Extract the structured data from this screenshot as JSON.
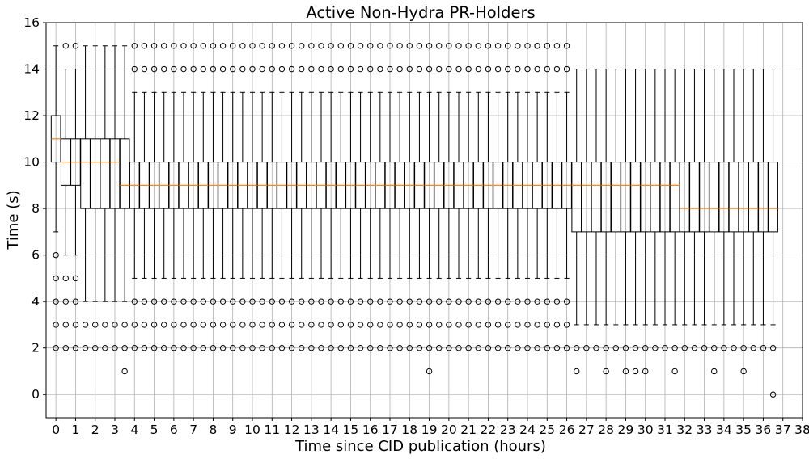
{
  "chart_data": {
    "type": "box",
    "title": "Active Non-Hydra PR-Holders",
    "xlabel": "Time since CID publication (hours)",
    "ylabel": "Time (s)",
    "xlim": [
      -0.5,
      38
    ],
    "ylim": [
      -1,
      16
    ],
    "xticks": [
      0,
      1,
      2,
      3,
      4,
      5,
      6,
      7,
      8,
      9,
      10,
      11,
      12,
      13,
      14,
      15,
      16,
      17,
      18,
      19,
      20,
      21,
      22,
      23,
      24,
      25,
      26,
      27,
      28,
      29,
      30,
      31,
      32,
      33,
      34,
      35,
      36,
      37,
      38
    ],
    "yticks": [
      0,
      2,
      4,
      6,
      8,
      10,
      12,
      14,
      16
    ],
    "grid": true,
    "legend": "none",
    "box_width_hours": 0.5,
    "colors": {
      "box": "#000000",
      "median": "#ff7f0e",
      "grid": "#b0b0b0",
      "flier": "#000000"
    },
    "segments": [
      {
        "x_start": 0,
        "x_end": 0,
        "q1": 10,
        "median": 11,
        "q3": 12,
        "whisker_low": 7,
        "whisker_high": 15,
        "fliers_low": [
          6,
          5,
          4,
          3,
          2
        ],
        "fliers_high": []
      },
      {
        "x_start": 0.5,
        "x_end": 1,
        "q1": 9,
        "median": 10,
        "q3": 11,
        "whisker_low": 6,
        "whisker_high": 14,
        "fliers_low": [
          5,
          4,
          3,
          2
        ],
        "fliers_high": [
          15
        ]
      },
      {
        "x_start": 1.5,
        "x_end": 3.5,
        "q1": 8,
        "median": 10,
        "q3": 11,
        "whisker_low": 4,
        "whisker_high": 15,
        "fliers_low": [
          3,
          2
        ],
        "fliers_high": [],
        "median_at_3_5": 9
      },
      {
        "x_start": 4,
        "x_end": 26,
        "q1": 8,
        "median": 9,
        "q3": 10,
        "whisker_low": 5,
        "whisker_high": 13,
        "fliers_low": [
          4,
          3,
          2
        ],
        "fliers_high": [
          14,
          15
        ]
      },
      {
        "x_start": 26.5,
        "x_end": 31.5,
        "q1": 7,
        "median": 9,
        "q3": 10,
        "whisker_low": 3,
        "whisker_high": 14,
        "fliers_low": [
          2
        ],
        "fliers_high": []
      },
      {
        "x_start": 32,
        "x_end": 36.5,
        "q1": 7,
        "median": 8,
        "q3": 10,
        "whisker_low": 3,
        "whisker_high": 14,
        "fliers_low": [
          2
        ],
        "fliers_high": []
      }
    ],
    "extra_fliers": [
      {
        "x": 3.5,
        "y": 1
      },
      {
        "x": 19,
        "y": 1
      },
      {
        "x": 26.5,
        "y": 1
      },
      {
        "x": 28,
        "y": 1
      },
      {
        "x": 29,
        "y": 1
      },
      {
        "x": 29.5,
        "y": 1
      },
      {
        "x": 30,
        "y": 1
      },
      {
        "x": 31.5,
        "y": 1
      },
      {
        "x": 33.5,
        "y": 1
      },
      {
        "x": 35,
        "y": 1
      },
      {
        "x": 36.5,
        "y": 0
      },
      {
        "x": 23,
        "y": 15
      },
      {
        "x": 24.5,
        "y": 15
      },
      {
        "x": 25,
        "y": 15
      }
    ]
  }
}
